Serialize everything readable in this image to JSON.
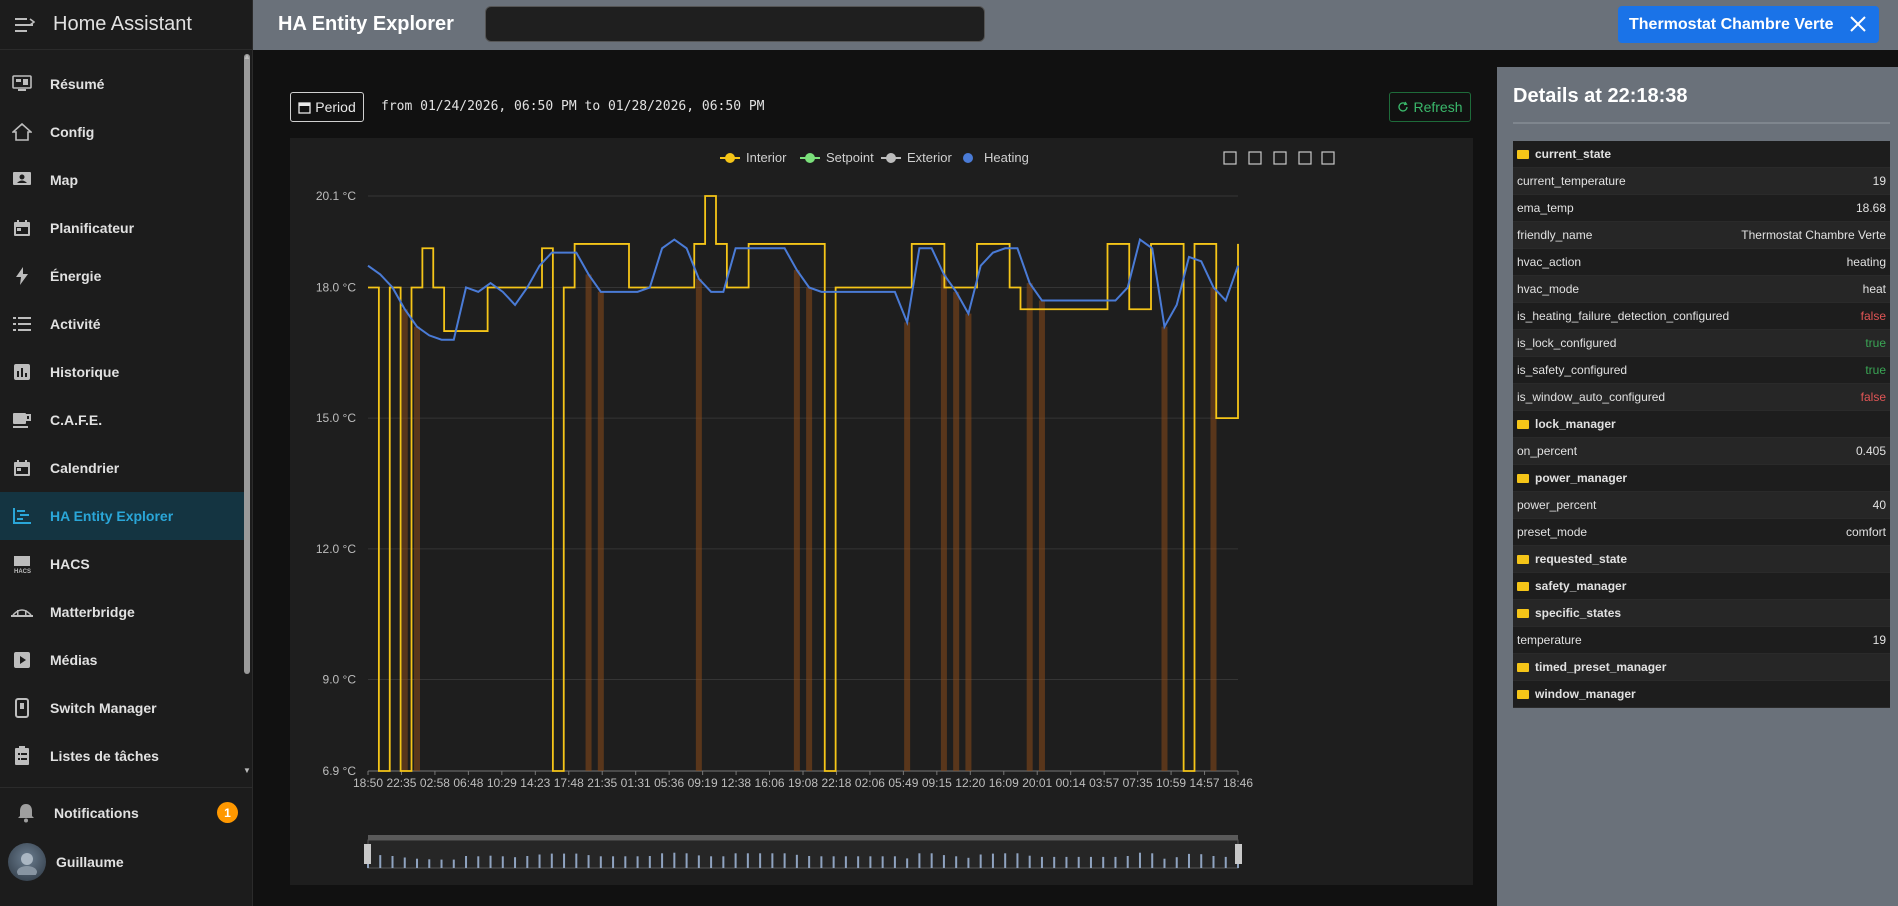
{
  "app": {
    "title": "Home Assistant"
  },
  "sidebar": {
    "items": [
      {
        "label": "Résumé",
        "icon": "dashboard-icon"
      },
      {
        "label": "Config",
        "icon": "config-icon"
      },
      {
        "label": "Map",
        "icon": "map-icon"
      },
      {
        "label": "Planificateur",
        "icon": "calendar-icon"
      },
      {
        "label": "Énergie",
        "icon": "lightning-icon"
      },
      {
        "label": "Activité",
        "icon": "list-icon"
      },
      {
        "label": "Historique",
        "icon": "chart-bar-icon"
      },
      {
        "label": "C.A.F.E.",
        "icon": "coffee-icon"
      },
      {
        "label": "Calendrier",
        "icon": "calendar-icon"
      },
      {
        "label": "HA Entity Explorer",
        "icon": "chart-gantt-icon",
        "active": true
      },
      {
        "label": "HACS",
        "icon": "hacs-icon"
      },
      {
        "label": "Matterbridge",
        "icon": "bridge-icon"
      },
      {
        "label": "Médias",
        "icon": "play-box-icon"
      },
      {
        "label": "Switch Manager",
        "icon": "switch-icon"
      },
      {
        "label": "Listes de tâches",
        "icon": "clipboard-list-icon"
      }
    ],
    "notifications": {
      "label": "Notifications",
      "count": "1"
    },
    "user": {
      "name": "Guillaume"
    }
  },
  "topbar": {
    "title": "HA Entity Explorer",
    "search_value": "",
    "entity_chip": "Thermostat Chambre Verte"
  },
  "toolbar": {
    "period_label": "Period",
    "range_text": "from 01/24/2026, 06:50 PM to 01/28/2026, 06:50 PM",
    "refresh_label": "Refresh"
  },
  "chart_data": {
    "type": "line",
    "legend": [
      "Interior",
      "Setpoint",
      "Exterior",
      "Heating"
    ],
    "legend_position": "top-center",
    "ylim": [
      6.9,
      20.1
    ],
    "yticks": [
      "20.1 °C",
      "18.0 °C",
      "15.0 °C",
      "12.0 °C",
      "9.0 °C",
      "6.9 °C"
    ],
    "ytick_values": [
      20.1,
      18.0,
      15.0,
      12.0,
      9.0,
      6.9
    ],
    "xticks": [
      "18:50",
      "22:35",
      "02:58",
      "06:48",
      "10:29",
      "14:23",
      "17:48",
      "21:35",
      "01:31",
      "05:36",
      "09:19",
      "12:38",
      "16:06",
      "19:08",
      "22:18",
      "02:06",
      "05:49",
      "09:15",
      "12:20",
      "16:09",
      "20:01",
      "00:14",
      "03:57",
      "07:35",
      "10:59",
      "14:57",
      "18:46"
    ],
    "colors": {
      "interior": "#f5c518",
      "setpoint": "#7be07b",
      "exterior": "#bdbdbd",
      "heating": "#4a7bd6",
      "heating_bar": "#8a4a1a"
    },
    "series": [
      {
        "name": "Interior",
        "values": [
          18,
          6.9,
          18,
          6.9,
          18,
          18.9,
          18,
          17,
          17,
          17,
          17,
          18,
          18,
          18,
          18,
          18,
          18.9,
          6.9,
          18,
          19,
          19,
          19,
          19,
          19,
          18,
          18,
          18,
          18,
          18,
          18,
          19,
          20.1,
          19,
          18,
          18,
          19,
          19,
          19,
          19,
          19,
          19,
          19,
          6.9,
          18,
          18,
          18,
          18,
          18,
          18,
          18,
          19,
          19,
          19,
          18,
          18,
          18,
          19,
          19,
          19,
          18,
          17.5,
          17.5,
          17.5,
          17.5,
          17.5,
          17.5,
          17.5,
          17.5,
          19,
          19,
          17.5,
          17.5,
          19,
          19,
          19,
          6.9,
          19,
          19,
          15,
          15,
          19
        ]
      },
      {
        "name": "Heating",
        "values": [
          18.5,
          18.3,
          18.0,
          17.5,
          17.1,
          16.9,
          16.8,
          16.8,
          18.0,
          17.9,
          18.1,
          17.9,
          17.6,
          18.0,
          18.5,
          18.8,
          18.8,
          18.8,
          18.3,
          17.9,
          17.9,
          17.9,
          17.9,
          18.0,
          18.9,
          19.1,
          18.9,
          18.2,
          17.9,
          17.9,
          18.9,
          18.9,
          18.9,
          18.9,
          18.9,
          18.4,
          18.0,
          17.9,
          17.9,
          17.9,
          17.9,
          17.9,
          17.9,
          17.9,
          17.2,
          18.9,
          18.9,
          18.3,
          17.9,
          17.4,
          18.5,
          18.8,
          18.9,
          18.9,
          18.1,
          17.7,
          17.7,
          17.7,
          17.7,
          17.7,
          17.7,
          17.7,
          18.0,
          19.1,
          18.9,
          17.1,
          17.6,
          18.7,
          18.6,
          18.0,
          17.7,
          18.5
        ]
      }
    ]
  },
  "details": {
    "title": "Details at 22:18:38",
    "rows": [
      {
        "key": "current_state",
        "value": "",
        "folder": true
      },
      {
        "key": "current_temperature",
        "value": "19"
      },
      {
        "key": "ema_temp",
        "value": "18.68"
      },
      {
        "key": "friendly_name",
        "value": "Thermostat Chambre Verte"
      },
      {
        "key": "hvac_action",
        "value": "heating"
      },
      {
        "key": "hvac_mode",
        "value": "heat"
      },
      {
        "key": "is_heating_failure_detection_configured",
        "value": "false",
        "bool": "false"
      },
      {
        "key": "is_lock_configured",
        "value": "true",
        "bool": "true"
      },
      {
        "key": "is_safety_configured",
        "value": "true",
        "bool": "true"
      },
      {
        "key": "is_window_auto_configured",
        "value": "false",
        "bool": "false"
      },
      {
        "key": "lock_manager",
        "value": "",
        "folder": true
      },
      {
        "key": "on_percent",
        "value": "0.405"
      },
      {
        "key": "power_manager",
        "value": "",
        "folder": true
      },
      {
        "key": "power_percent",
        "value": "40"
      },
      {
        "key": "preset_mode",
        "value": "comfort"
      },
      {
        "key": "requested_state",
        "value": "",
        "folder": true
      },
      {
        "key": "safety_manager",
        "value": "",
        "folder": true
      },
      {
        "key": "specific_states",
        "value": "",
        "folder": true
      },
      {
        "key": "temperature",
        "value": "19"
      },
      {
        "key": "timed_preset_manager",
        "value": "",
        "folder": true
      },
      {
        "key": "window_manager",
        "value": "",
        "folder": true
      }
    ]
  }
}
